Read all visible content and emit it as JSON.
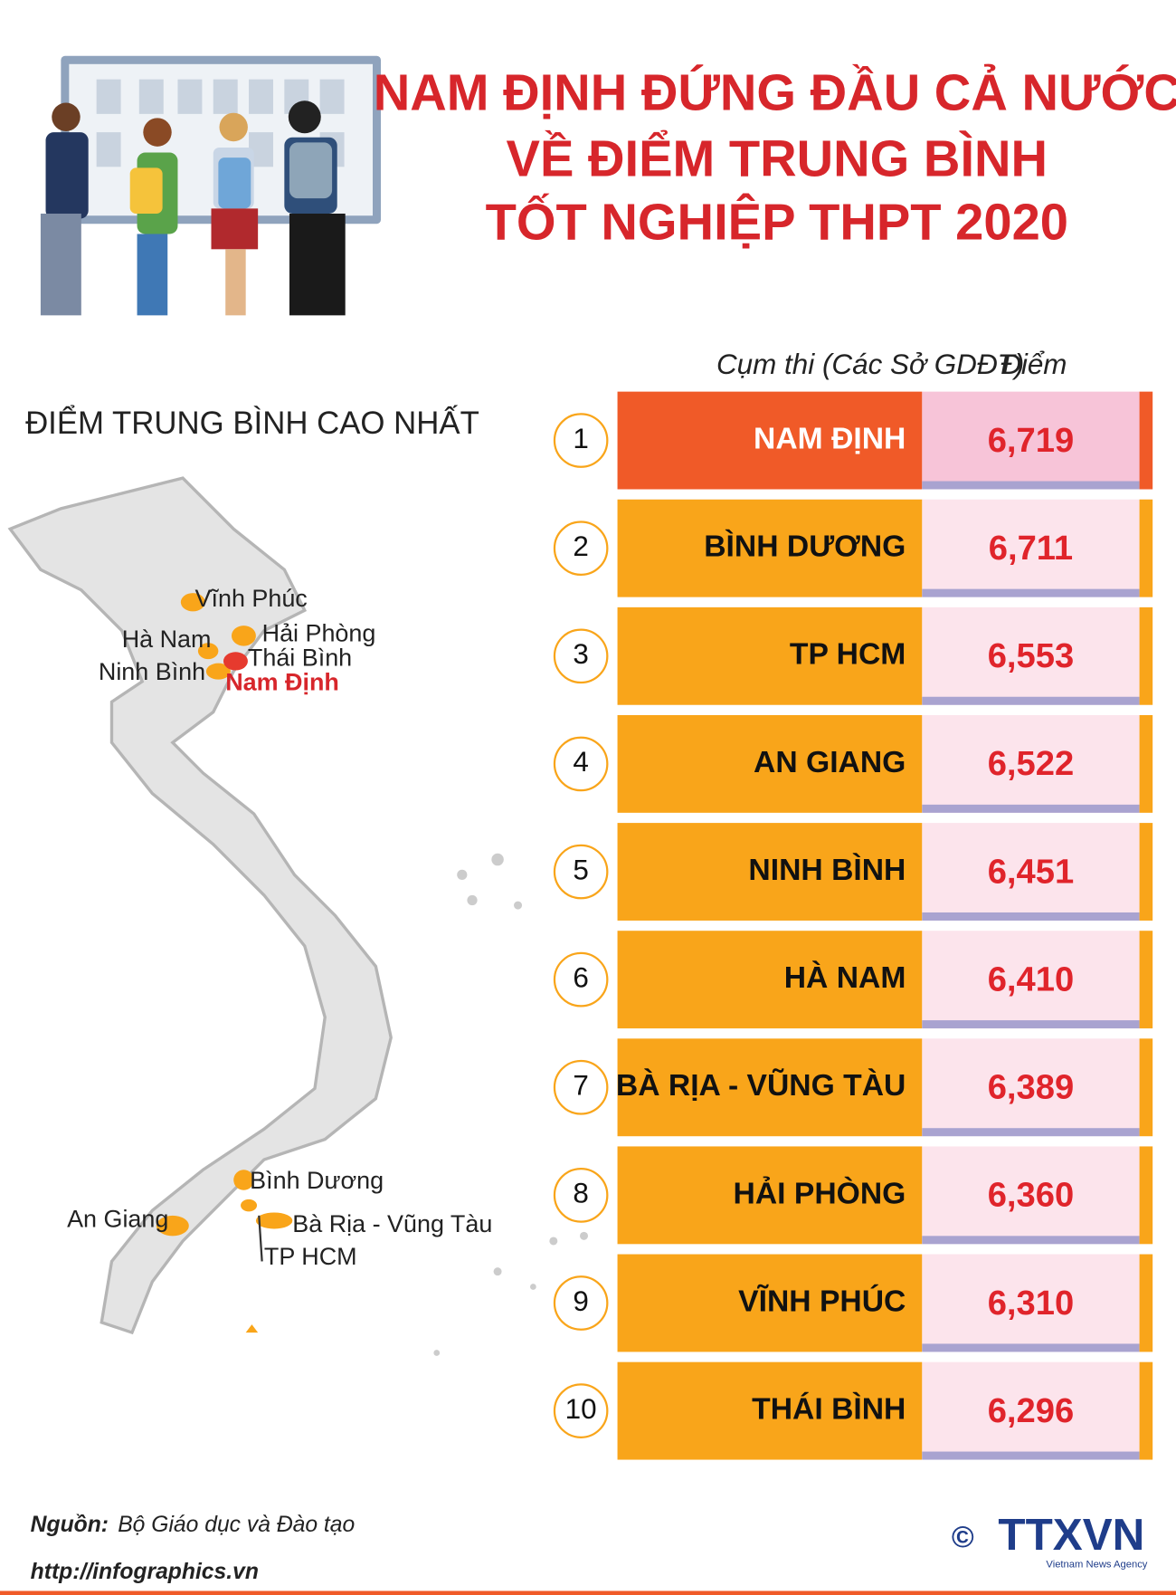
{
  "header": {
    "title": [
      "NAM ĐỊNH ĐỨNG ĐẦU CẢ NƯỚC",
      "VỀ ĐIỂM TRUNG BÌNH",
      "TỐT NGHIỆP THPT 2020"
    ]
  },
  "map": {
    "title": "ĐIỂM TRUNG BÌNH CAO NHẤT",
    "labels": [
      "Vĩnh Phúc",
      "Hải Phòng",
      "Hà Nam",
      "Thái Bình",
      "Ninh Bình",
      "Nam Định",
      "Bình Dương",
      "An Giang",
      "Bà Rịa - Vũng Tàu",
      "TP HCM"
    ]
  },
  "table": {
    "headers": [
      "Cụm thi (Các Sở GDĐT)",
      "Điểm"
    ],
    "rows": [
      {
        "rank": 1,
        "name": "NAM ĐỊNH",
        "score": "6,719"
      },
      {
        "rank": 2,
        "name": "BÌNH DƯƠNG",
        "score": "6,711"
      },
      {
        "rank": 3,
        "name": "TP HCM",
        "score": "6,553"
      },
      {
        "rank": 4,
        "name": "AN GIANG",
        "score": "6,522"
      },
      {
        "rank": 5,
        "name": "NINH BÌNH",
        "score": "6,451"
      },
      {
        "rank": 6,
        "name": "HÀ NAM",
        "score": "6,410"
      },
      {
        "rank": 7,
        "name": "BÀ RỊA - VŨNG TÀU",
        "score": "6,389"
      },
      {
        "rank": 8,
        "name": "HẢI PHÒNG",
        "score": "6,360"
      },
      {
        "rank": 9,
        "name": "VĨNH PHÚC",
        "score": "6,310"
      },
      {
        "rank": 10,
        "name": "THÁI BÌNH",
        "score": "6,296"
      }
    ]
  },
  "footer": {
    "source_label": "Nguồn:",
    "source": "Bộ Giáo dục và Đào tạo",
    "url": "http://infographics.vn",
    "logo": "TTXVN",
    "logo_sub": "Vietnam News Agency",
    "copyright": "©"
  }
}
